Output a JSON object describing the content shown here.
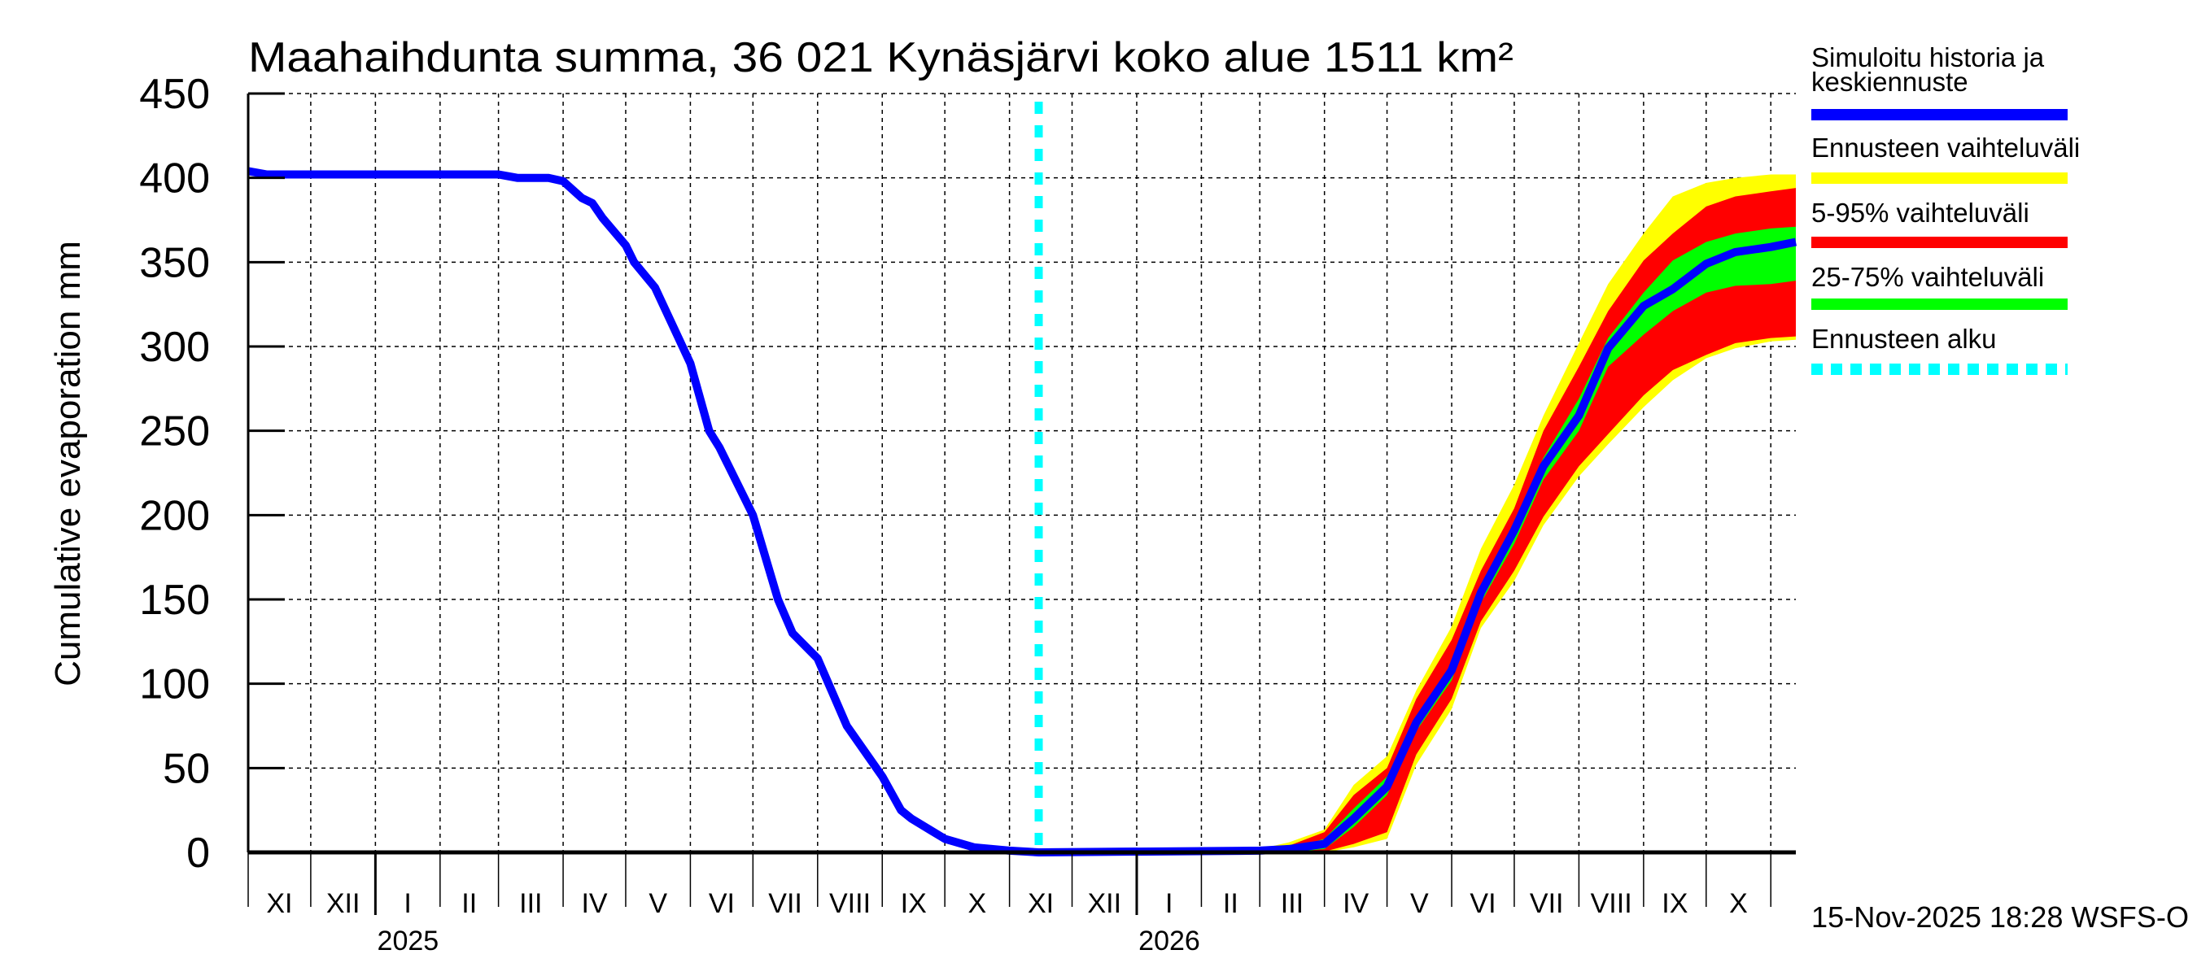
{
  "chart_data": {
    "type": "area",
    "title": "Maahaihdunta summa, 36 021 Kynäsjärvi koko alue 1511 km²",
    "ylabel": "Cumulative evaporation   mm",
    "xlabel": "",
    "ylim": [
      0,
      450
    ],
    "xlim": [
      "2024-11-01",
      "2026-11-13"
    ],
    "yticks": [
      "0",
      "50",
      "100",
      "150",
      "200",
      "250",
      "300",
      "350",
      "400",
      "450"
    ],
    "month_labels": [
      "XI",
      "XII",
      "I",
      "II",
      "III",
      "IV",
      "V",
      "VI",
      "VII",
      "VIII",
      "IX",
      "X",
      "XI",
      "XII",
      "I",
      "II",
      "III",
      "IV",
      "V",
      "VI",
      "VII",
      "VIII",
      "IX",
      "X"
    ],
    "year_labels": [
      "2025",
      "2026"
    ],
    "grid": true,
    "legend_position": "right",
    "forecast_start": "2025-11-15",
    "timestamp": "15-Nov-2025 18:28 WSFS-O",
    "colors": {
      "median": "#0000ff",
      "range": "#ffff00",
      "p5_95": "#ff0000",
      "p25_75": "#00ff00",
      "forecast_start": "#00ffff"
    },
    "legend": [
      {
        "label": "Simuloitu historia ja",
        "label2": "keskiennuste",
        "key": "median"
      },
      {
        "label": "Ennusteen vaihteluväli",
        "key": "range"
      },
      {
        "label": "5-95% vaihteluväli",
        "key": "p5_95"
      },
      {
        "label": "25-75% vaihteluväli",
        "key": "p25_75"
      },
      {
        "label": "Ennusteen alku",
        "key": "forecast_start"
      }
    ],
    "median": {
      "x": [
        "2024-11-01",
        "2024-11-10",
        "2024-12-01",
        "2025-01-01",
        "2025-02-01",
        "2025-03-01",
        "2025-03-10",
        "2025-03-25",
        "2025-04-01",
        "2025-04-10",
        "2025-04-15",
        "2025-04-20",
        "2025-05-01",
        "2025-05-05",
        "2025-05-15",
        "2025-06-01",
        "2025-06-10",
        "2025-06-15",
        "2025-07-01",
        "2025-07-13",
        "2025-07-20",
        "2025-08-01",
        "2025-08-15",
        "2025-09-01",
        "2025-09-10",
        "2025-09-15",
        "2025-10-01",
        "2025-10-15",
        "2025-11-01",
        "2025-11-15",
        "2026-03-01",
        "2026-03-15",
        "2026-04-01",
        "2026-04-15",
        "2026-05-01",
        "2026-05-15",
        "2026-06-01",
        "2026-06-15",
        "2026-07-01",
        "2026-07-15",
        "2026-08-01",
        "2026-08-15",
        "2026-09-01",
        "2026-09-15",
        "2026-10-01",
        "2026-10-15",
        "2026-11-01",
        "2026-11-13"
      ],
      "y": [
        404,
        402,
        402,
        402,
        402,
        402,
        400,
        400,
        398,
        388,
        385,
        376,
        360,
        350,
        335,
        290,
        250,
        240,
        200,
        150,
        130,
        115,
        75,
        45,
        25,
        20,
        8,
        3,
        1,
        0,
        1,
        2,
        5,
        20,
        39,
        77,
        108,
        154,
        191,
        229,
        259,
        299,
        324,
        334,
        349,
        356,
        359,
        362
      ]
    },
    "bands": {
      "x": [
        "2025-11-15",
        "2026-03-01",
        "2026-03-15",
        "2026-04-01",
        "2026-04-15",
        "2026-05-01",
        "2026-05-15",
        "2026-06-01",
        "2026-06-15",
        "2026-07-01",
        "2026-07-15",
        "2026-08-01",
        "2026-08-15",
        "2026-09-01",
        "2026-09-15",
        "2026-10-01",
        "2026-10-15",
        "2026-11-01",
        "2026-11-13"
      ],
      "range_max": [
        0,
        2,
        6,
        13.5,
        40,
        57,
        96,
        134,
        180,
        218,
        259,
        302,
        337,
        367,
        389,
        397,
        400,
        402,
        402
      ],
      "range_min": [
        0,
        0,
        0,
        0,
        3,
        8,
        52,
        85,
        133,
        161,
        194,
        223,
        242,
        264,
        280,
        293,
        299,
        303,
        304
      ],
      "p95": [
        0,
        1,
        4,
        12,
        34,
        50,
        91,
        126,
        167,
        204,
        250,
        288,
        321,
        351,
        367,
        383,
        389,
        392,
        394
      ],
      "p5": [
        0,
        0,
        0,
        0.5,
        5,
        12,
        58,
        91,
        137,
        167,
        199,
        229,
        248,
        271,
        286,
        295,
        302,
        305,
        306
      ],
      "p75": [
        0,
        1,
        2,
        8,
        26,
        45,
        80,
        112,
        158,
        196,
        234,
        269,
        305,
        332,
        351,
        362,
        367,
        370,
        371
      ],
      "p25": [
        0,
        0,
        0,
        2,
        15,
        34,
        72,
        102,
        148,
        183,
        221,
        250,
        288,
        307,
        321,
        332,
        336,
        337,
        339
      ]
    }
  }
}
